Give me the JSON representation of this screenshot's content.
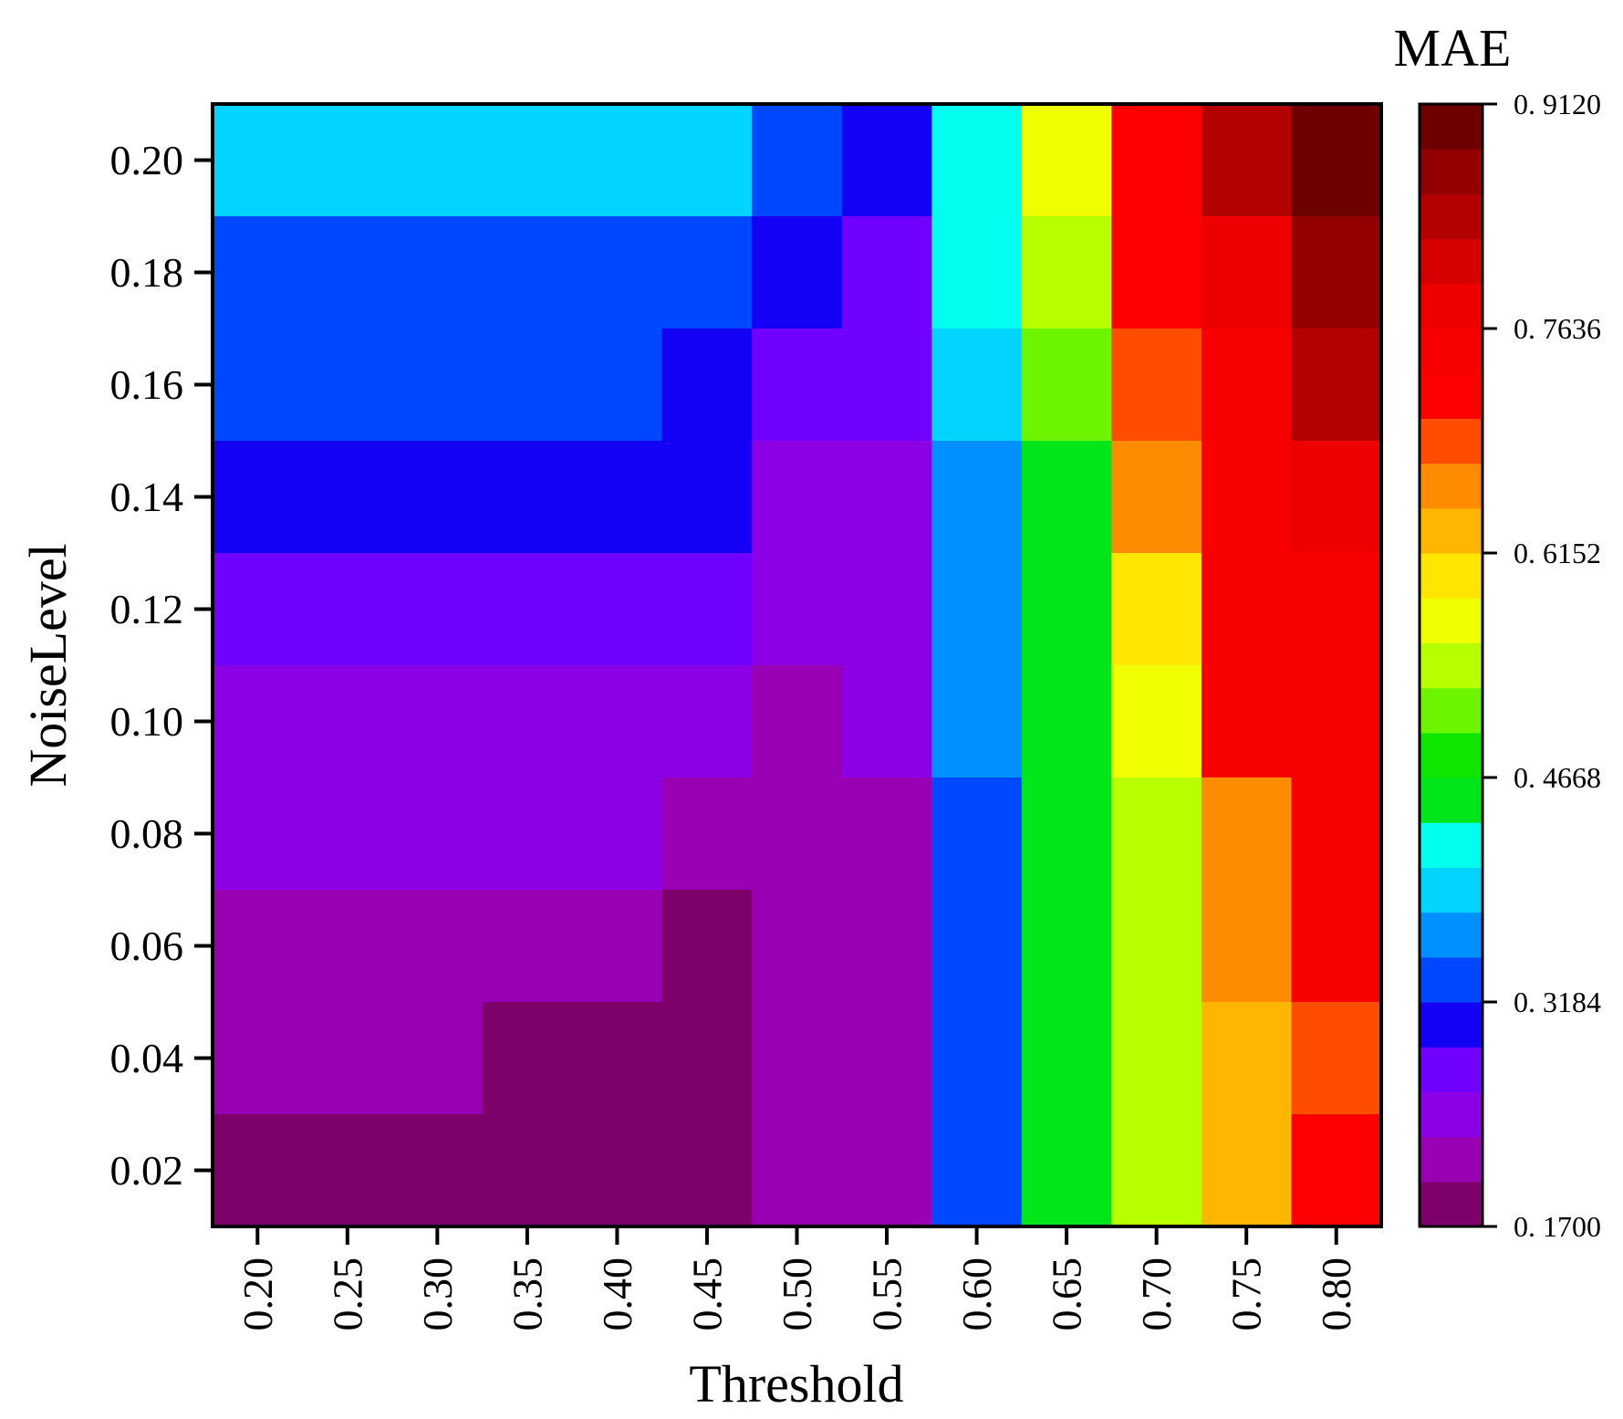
{
  "chart_data": {
    "type": "heatmap",
    "xlabel": "Threshold",
    "ylabel": "NoiseLevel",
    "colorbar_title": "MAE",
    "x": [
      "0.20",
      "0.25",
      "0.30",
      "0.35",
      "0.40",
      "0.45",
      "0.50",
      "0.55",
      "0.60",
      "0.65",
      "0.70",
      "0.75",
      "0.80"
    ],
    "y": [
      "0.20",
      "0.18",
      "0.16",
      "0.14",
      "0.12",
      "0.10",
      "0.08",
      "0.06",
      "0.04",
      "0.02"
    ],
    "colorbar_ticks": [
      "0. 9120",
      "0. 7636",
      "0. 6152",
      "0. 4668",
      "0. 3184",
      "0. 1700"
    ],
    "colorbar_range": [
      0.17,
      0.912
    ],
    "colors": [
      "#7d006b",
      "#9a00b3",
      "#8c00e6",
      "#7000ff",
      "#1400f5",
      "#0048ff",
      "#0090ff",
      "#00d4ff",
      "#00ffee",
      "#00e61a",
      "#0fe600",
      "#6df500",
      "#b8ff00",
      "#f0ff00",
      "#ffe600",
      "#ffb600",
      "#ff8c00",
      "#ff4d00",
      "#ff0000",
      "#f80000",
      "#ef0000",
      "#d60000",
      "#b30000",
      "#940000",
      "#6e0000"
    ],
    "cells": [
      [
        7,
        7,
        7,
        7,
        7,
        7,
        5,
        4,
        8,
        13,
        18,
        22,
        24
      ],
      [
        5,
        5,
        5,
        5,
        5,
        5,
        4,
        3,
        8,
        12,
        18,
        20,
        23
      ],
      [
        5,
        5,
        5,
        5,
        5,
        4,
        3,
        3,
        7,
        11,
        17,
        19,
        22
      ],
      [
        4,
        4,
        4,
        4,
        4,
        4,
        2,
        2,
        6,
        9,
        16,
        19,
        20
      ],
      [
        3,
        3,
        3,
        3,
        3,
        3,
        2,
        2,
        6,
        9,
        14,
        19,
        19
      ],
      [
        2,
        2,
        2,
        2,
        2,
        2,
        1,
        2,
        6,
        9,
        13,
        19,
        19
      ],
      [
        2,
        2,
        2,
        2,
        2,
        1,
        1,
        1,
        5,
        9,
        12,
        16,
        19
      ],
      [
        1,
        1,
        1,
        1,
        1,
        0,
        1,
        1,
        5,
        9,
        12,
        16,
        19
      ],
      [
        1,
        1,
        1,
        0,
        0,
        0,
        1,
        1,
        5,
        9,
        12,
        15,
        17
      ],
      [
        0,
        0,
        0,
        0,
        0,
        0,
        1,
        1,
        5,
        9,
        12,
        15,
        18
      ]
    ]
  }
}
